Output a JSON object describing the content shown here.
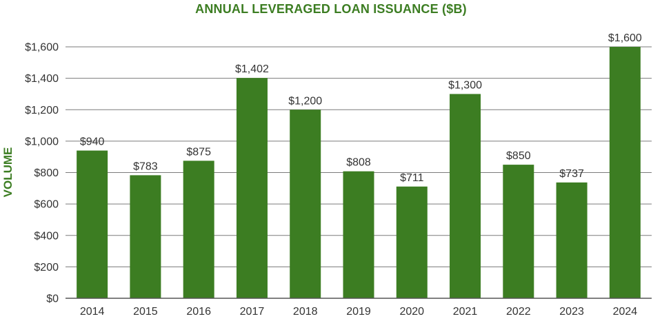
{
  "chart_data": {
    "type": "bar",
    "title": "ANNUAL LEVERAGED LOAN ISSUANCE ($B)",
    "ylabel": "VOLUME",
    "xlabel": "",
    "categories": [
      "2014",
      "2015",
      "2016",
      "2017",
      "2018",
      "2019",
      "2020",
      "2021",
      "2022",
      "2023",
      "2024"
    ],
    "values": [
      940,
      783,
      875,
      1402,
      1200,
      808,
      711,
      1300,
      850,
      737,
      1600
    ],
    "value_labels": [
      "$940",
      "$783",
      "$875",
      "$1,402",
      "$1,200",
      "$808",
      "$711",
      "$1,300",
      "$850",
      "$737",
      "$1,600"
    ],
    "ylim": [
      0,
      1600
    ],
    "yticks": [
      0,
      200,
      400,
      600,
      800,
      1000,
      1200,
      1400,
      1600
    ],
    "ytick_labels": [
      "$0",
      "$200",
      "$400",
      "$600",
      "$800",
      "$1,000",
      "$1,200",
      "$1,400",
      "$1,600"
    ],
    "grid": true,
    "bar_color": "#3c7d22",
    "title_color": "#3c7d22"
  }
}
